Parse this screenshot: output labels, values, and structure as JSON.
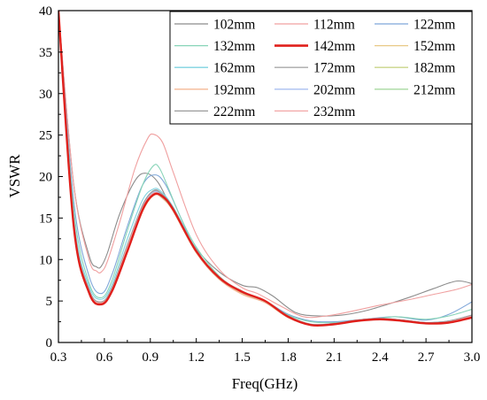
{
  "chart_data": {
    "type": "line",
    "xlabel": "Freq(GHz)",
    "ylabel": "VSWR",
    "xlim": [
      0.3,
      3.0
    ],
    "ylim": [
      0,
      40
    ],
    "xticks": [
      0.3,
      0.6,
      0.9,
      1.2,
      1.5,
      1.8,
      2.1,
      2.4,
      2.7,
      3.0
    ],
    "yticks": [
      0,
      5,
      10,
      15,
      20,
      25,
      30,
      35,
      40
    ],
    "xtick_labels": [
      "0.3",
      "0.6",
      "0.9",
      "1.2",
      "1.5",
      "1.8",
      "2.1",
      "2.4",
      "2.7",
      "3.0"
    ],
    "ytick_labels": [
      "0",
      "5",
      "10",
      "15",
      "20",
      "25",
      "30",
      "35",
      "40"
    ],
    "grid": false,
    "legend_position": "top-right",
    "legend_columns": 3,
    "series": [
      {
        "name": "102mm",
        "color": "#8c8c8c",
        "x": [
          0.3,
          0.4,
          0.5,
          0.55,
          0.58,
          0.62,
          0.7,
          0.8,
          0.87,
          0.95,
          1.05,
          1.2,
          1.35,
          1.5,
          1.6,
          1.7,
          1.85,
          2.0,
          2.15,
          2.3,
          2.45,
          2.6,
          2.75,
          2.9,
          3.0
        ],
        "y": [
          40,
          19,
          10.5,
          9.1,
          9.2,
          10.8,
          15.5,
          19.5,
          20.4,
          19.3,
          15.8,
          11.3,
          8.5,
          6.9,
          6.6,
          5.6,
          3.6,
          3.2,
          3.3,
          3.8,
          4.6,
          5.5,
          6.5,
          7.4,
          7.1
        ]
      },
      {
        "name": "112mm",
        "color": "#f0a0a0",
        "x": [
          0.3,
          0.4,
          0.5,
          0.55,
          0.58,
          0.62,
          0.7,
          0.8,
          0.88,
          0.92,
          0.98,
          1.05,
          1.2,
          1.35,
          1.5,
          1.6,
          1.75,
          1.9,
          2.05,
          2.2,
          2.4,
          2.6,
          2.75,
          2.9,
          3.0
        ],
        "y": [
          40,
          19,
          10,
          8.6,
          8.5,
          9.8,
          14.5,
          21,
          24.5,
          25.1,
          24.1,
          20.5,
          13,
          8.8,
          6.6,
          5.9,
          4.4,
          3.1,
          3.2,
          3.7,
          4.5,
          5.2,
          5.8,
          6.4,
          7.0
        ]
      },
      {
        "name": "122mm",
        "color": "#7fa7d9",
        "x": [
          0.3,
          0.4,
          0.5,
          0.58,
          0.65,
          0.75,
          0.85,
          0.93,
          1.0,
          1.1,
          1.2,
          1.35,
          1.5,
          1.65,
          1.8,
          1.95,
          2.1,
          2.3,
          2.5,
          2.7,
          2.85,
          3.0
        ],
        "y": [
          40,
          17,
          8,
          5.9,
          8.2,
          14,
          19,
          20.2,
          19,
          15,
          11,
          7.8,
          6,
          5,
          3.4,
          2.6,
          2.5,
          2.8,
          3.1,
          2.7,
          3.4,
          4.9
        ]
      },
      {
        "name": "132mm",
        "color": "#88d4b8",
        "x": [
          0.3,
          0.4,
          0.5,
          0.58,
          0.65,
          0.75,
          0.85,
          0.92,
          0.96,
          1.02,
          1.1,
          1.2,
          1.35,
          1.5,
          1.65,
          1.8,
          1.95,
          2.1,
          2.3,
          2.5,
          2.7,
          2.85,
          3.0
        ],
        "y": [
          40,
          16,
          7.2,
          5.4,
          7.5,
          13.5,
          19,
          21.3,
          21,
          18.5,
          15,
          11.5,
          8,
          6,
          4.9,
          3.3,
          2.5,
          2.4,
          2.7,
          3.1,
          2.8,
          3.2,
          4.0
        ]
      },
      {
        "name": "142mm",
        "color": "#e0201c",
        "bold": true,
        "x": [
          0.3,
          0.4,
          0.5,
          0.58,
          0.65,
          0.75,
          0.85,
          0.92,
          0.98,
          1.05,
          1.2,
          1.35,
          1.5,
          1.65,
          1.8,
          1.95,
          2.1,
          2.25,
          2.4,
          2.55,
          2.7,
          2.85,
          3.0
        ],
        "y": [
          40,
          14,
          6,
          4.6,
          6.2,
          11,
          16,
          17.8,
          17.6,
          16,
          11,
          7.8,
          6.1,
          5,
          3.1,
          2.1,
          2.2,
          2.6,
          2.8,
          2.6,
          2.3,
          2.4,
          3.0
        ]
      },
      {
        "name": "152mm",
        "color": "#e8c987",
        "x": [
          0.3,
          0.4,
          0.5,
          0.58,
          0.65,
          0.75,
          0.85,
          0.92,
          0.98,
          1.05,
          1.2,
          1.35,
          1.5,
          1.65,
          1.8,
          1.95,
          2.1,
          2.25,
          2.4,
          2.55,
          2.7,
          2.85,
          3.0
        ],
        "y": [
          40,
          14,
          6.1,
          4.7,
          6.3,
          11,
          15.8,
          17.7,
          17.5,
          15.8,
          10.8,
          7.6,
          5.9,
          4.8,
          3.0,
          2.1,
          2.2,
          2.6,
          2.8,
          2.6,
          2.3,
          2.5,
          3.1
        ]
      },
      {
        "name": "162mm",
        "color": "#7fd3e0",
        "x": [
          0.3,
          0.4,
          0.5,
          0.58,
          0.65,
          0.75,
          0.85,
          0.92,
          0.97,
          1.05,
          1.2,
          1.35,
          1.5,
          1.65,
          1.8,
          1.95,
          2.1,
          2.25,
          2.4,
          2.55,
          2.7,
          2.85,
          3.0
        ],
        "y": [
          40,
          15,
          6.8,
          5.2,
          7,
          12.5,
          17.2,
          18.5,
          18.2,
          16.3,
          11.2,
          7.8,
          6,
          4.9,
          3.1,
          2.2,
          2.3,
          2.7,
          2.9,
          2.7,
          2.4,
          2.6,
          3.2
        ]
      },
      {
        "name": "172mm",
        "color": "#a8a8a8",
        "x": [
          0.3,
          0.4,
          0.5,
          0.58,
          0.65,
          0.75,
          0.85,
          0.92,
          0.97,
          1.05,
          1.2,
          1.35,
          1.5,
          1.65,
          1.8,
          1.95,
          2.1,
          2.25,
          2.4,
          2.55,
          2.7,
          2.85,
          3.0
        ],
        "y": [
          40,
          14.5,
          6.4,
          4.9,
          6.6,
          11.8,
          16.5,
          18.2,
          17.9,
          16.1,
          11.1,
          7.9,
          6.2,
          5,
          3.2,
          2.2,
          2.3,
          2.7,
          2.9,
          2.7,
          2.4,
          2.6,
          3.3
        ]
      },
      {
        "name": "182mm",
        "color": "#c9d48a",
        "x": [
          0.3,
          0.4,
          0.5,
          0.58,
          0.65,
          0.75,
          0.85,
          0.92,
          0.97,
          1.05,
          1.2,
          1.35,
          1.5,
          1.65,
          1.8,
          1.95,
          2.1,
          2.25,
          2.4,
          2.55,
          2.7,
          2.85,
          3.0
        ],
        "y": [
          40,
          14.2,
          6.2,
          4.8,
          6.4,
          11.4,
          16.2,
          17.9,
          17.6,
          15.9,
          10.9,
          7.7,
          6,
          4.9,
          3.1,
          2.1,
          2.2,
          2.6,
          2.8,
          2.6,
          2.3,
          2.5,
          3.1
        ]
      },
      {
        "name": "192mm",
        "color": "#f5b896",
        "x": [
          0.3,
          0.4,
          0.5,
          0.58,
          0.65,
          0.75,
          0.85,
          0.92,
          0.97,
          1.05,
          1.2,
          1.35,
          1.5,
          1.65,
          1.8,
          1.95,
          2.1,
          2.25,
          2.4,
          2.55,
          2.7,
          2.85,
          3.0
        ],
        "y": [
          40,
          14.1,
          6.1,
          4.7,
          6.3,
          11.2,
          16,
          17.8,
          17.5,
          15.8,
          10.8,
          7.6,
          5.8,
          4.8,
          3.0,
          2.1,
          2.2,
          2.6,
          2.8,
          2.6,
          2.3,
          2.5,
          3.1
        ]
      },
      {
        "name": "202mm",
        "color": "#a9bff0",
        "x": [
          0.3,
          0.4,
          0.5,
          0.58,
          0.65,
          0.75,
          0.85,
          0.92,
          0.97,
          1.05,
          1.2,
          1.35,
          1.5,
          1.65,
          1.8,
          1.95,
          2.1,
          2.25,
          2.4,
          2.55,
          2.7,
          2.85,
          3.0
        ],
        "y": [
          40,
          14.3,
          6.3,
          4.8,
          6.5,
          11.6,
          16.4,
          18.1,
          17.8,
          16,
          11,
          7.8,
          6.1,
          4.9,
          3.1,
          2.2,
          2.3,
          2.7,
          2.9,
          2.7,
          2.4,
          2.6,
          3.2
        ]
      },
      {
        "name": "212mm",
        "color": "#a8d9a0",
        "x": [
          0.3,
          0.4,
          0.5,
          0.58,
          0.65,
          0.75,
          0.85,
          0.92,
          0.97,
          1.05,
          1.2,
          1.35,
          1.5,
          1.65,
          1.8,
          1.95,
          2.1,
          2.25,
          2.4,
          2.55,
          2.7,
          2.85,
          3.0
        ],
        "y": [
          40,
          14.2,
          6.2,
          4.7,
          6.4,
          11.4,
          16.2,
          17.9,
          17.6,
          15.9,
          10.9,
          7.7,
          6,
          4.9,
          3.1,
          2.1,
          2.2,
          2.6,
          2.8,
          2.6,
          2.3,
          2.5,
          3.1
        ]
      },
      {
        "name": "222mm",
        "color": "#9a9a9a",
        "x": [
          0.3,
          0.4,
          0.5,
          0.58,
          0.65,
          0.75,
          0.85,
          0.92,
          0.97,
          1.05,
          1.2,
          1.35,
          1.5,
          1.65,
          1.8,
          1.95,
          2.1,
          2.25,
          2.4,
          2.55,
          2.7,
          2.85,
          3.0
        ],
        "y": [
          40,
          14.4,
          6.4,
          4.9,
          6.6,
          11.7,
          16.6,
          18.3,
          18,
          16.2,
          11.1,
          7.9,
          6.1,
          5,
          3.2,
          2.2,
          2.3,
          2.7,
          2.9,
          2.7,
          2.4,
          2.6,
          3.3
        ]
      },
      {
        "name": "232mm",
        "color": "#f2a6a6",
        "x": [
          0.3,
          0.4,
          0.5,
          0.58,
          0.65,
          0.75,
          0.85,
          0.92,
          0.97,
          1.05,
          1.2,
          1.35,
          1.5,
          1.65,
          1.8,
          1.95,
          2.1,
          2.25,
          2.4,
          2.55,
          2.7,
          2.85,
          3.0
        ],
        "y": [
          40,
          14.2,
          6.2,
          4.8,
          6.4,
          11.5,
          16.3,
          18,
          17.7,
          16,
          10.9,
          7.7,
          6,
          4.9,
          3.1,
          2.1,
          2.2,
          2.6,
          2.8,
          2.6,
          2.3,
          2.5,
          3.2
        ]
      }
    ]
  }
}
